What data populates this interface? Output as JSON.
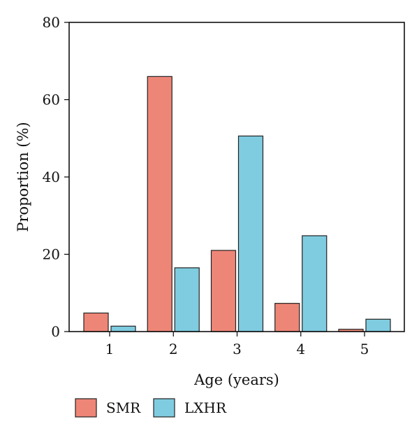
{
  "chart_data": {
    "type": "bar",
    "title": "",
    "xlabel": "Age (years)",
    "ylabel": "Proportion (%)",
    "categories": [
      "1",
      "2",
      "3",
      "4",
      "5"
    ],
    "ylim": [
      0,
      80
    ],
    "yticks": [
      0,
      20,
      40,
      60,
      80
    ],
    "grid": false,
    "legend_position": "bottom-left",
    "series": [
      {
        "name": "SMR",
        "color": "#EE8677",
        "values": [
          4.8,
          66.0,
          21.0,
          7.3,
          0.6
        ]
      },
      {
        "name": "LXHR",
        "color": "#7FCCE0",
        "values": [
          1.4,
          16.5,
          50.6,
          24.8,
          3.2
        ]
      }
    ]
  }
}
